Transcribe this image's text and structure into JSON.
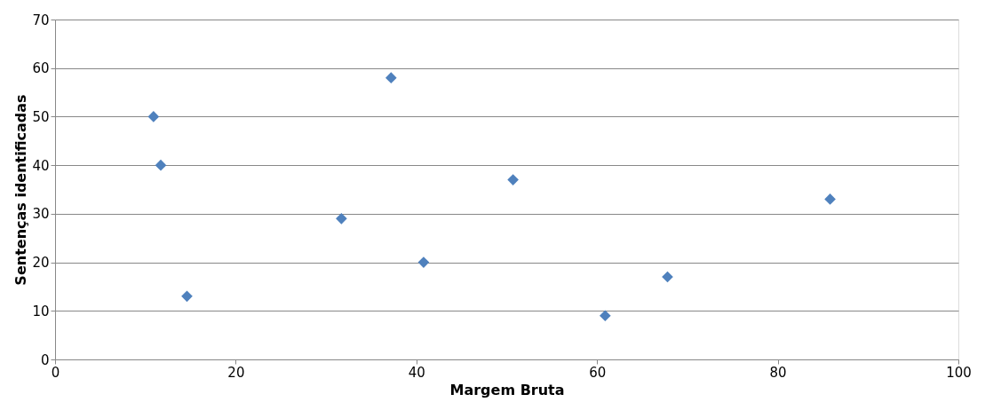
{
  "chart_data": {
    "type": "scatter",
    "xlabel": "Margem Bruta",
    "ylabel": "Sentenças identificadas",
    "x": [
      10.9,
      11.7,
      14.6,
      31.7,
      37.2,
      40.8,
      50.7,
      60.9,
      67.8,
      85.8
    ],
    "series": [
      {
        "color": "#4f81bd",
        "values": [
          50,
          40,
          13,
          29,
          58,
          20,
          37,
          9,
          17,
          33
        ]
      }
    ],
    "xlim": [
      0,
      100
    ],
    "xticks": [
      0,
      20,
      40,
      60,
      80,
      100
    ],
    "ylim": [
      0,
      70
    ],
    "yticks": [
      0,
      10,
      20,
      30,
      40,
      50,
      60,
      70
    ],
    "grid": "y",
    "marker": "diamond"
  }
}
